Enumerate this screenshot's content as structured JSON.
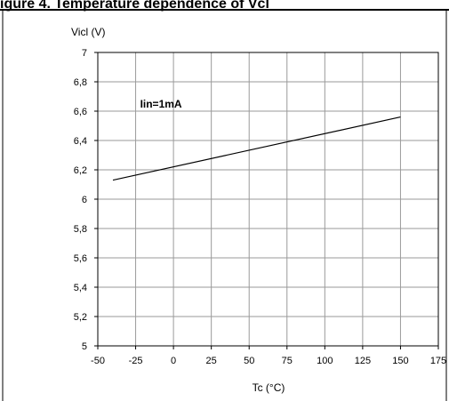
{
  "header_fragment": "igure 4. Temperature dependence of Vcl",
  "chart_data": {
    "type": "line",
    "title": "",
    "xlabel": "Tc (°C)",
    "ylabel": "Vicl (V)",
    "xlim": [
      -50,
      175
    ],
    "ylim": [
      5,
      7
    ],
    "x_ticks": [
      -50,
      -25,
      0,
      25,
      50,
      75,
      100,
      125,
      150,
      175
    ],
    "x_tick_labels": [
      "-50",
      "-25",
      "0",
      "25",
      "50",
      "75",
      "100",
      "125",
      "150",
      "175"
    ],
    "y_ticks": [
      5,
      5.2,
      5.4,
      5.6,
      5.8,
      6,
      6.2,
      6.4,
      6.6,
      6.8,
      7
    ],
    "y_tick_labels": [
      "5",
      "5,2",
      "5,4",
      "5,6",
      "5,8",
      "6",
      "6,2",
      "6,4",
      "6,6",
      "6,8",
      "7"
    ],
    "grid": true,
    "series": [
      {
        "x": [
          -40,
          150
        ],
        "y": [
          6.13,
          6.56
        ],
        "color": "#000000"
      }
    ],
    "annotations": [
      {
        "text": "Iin=1mA",
        "x": -15,
        "y": 6.65
      }
    ]
  }
}
